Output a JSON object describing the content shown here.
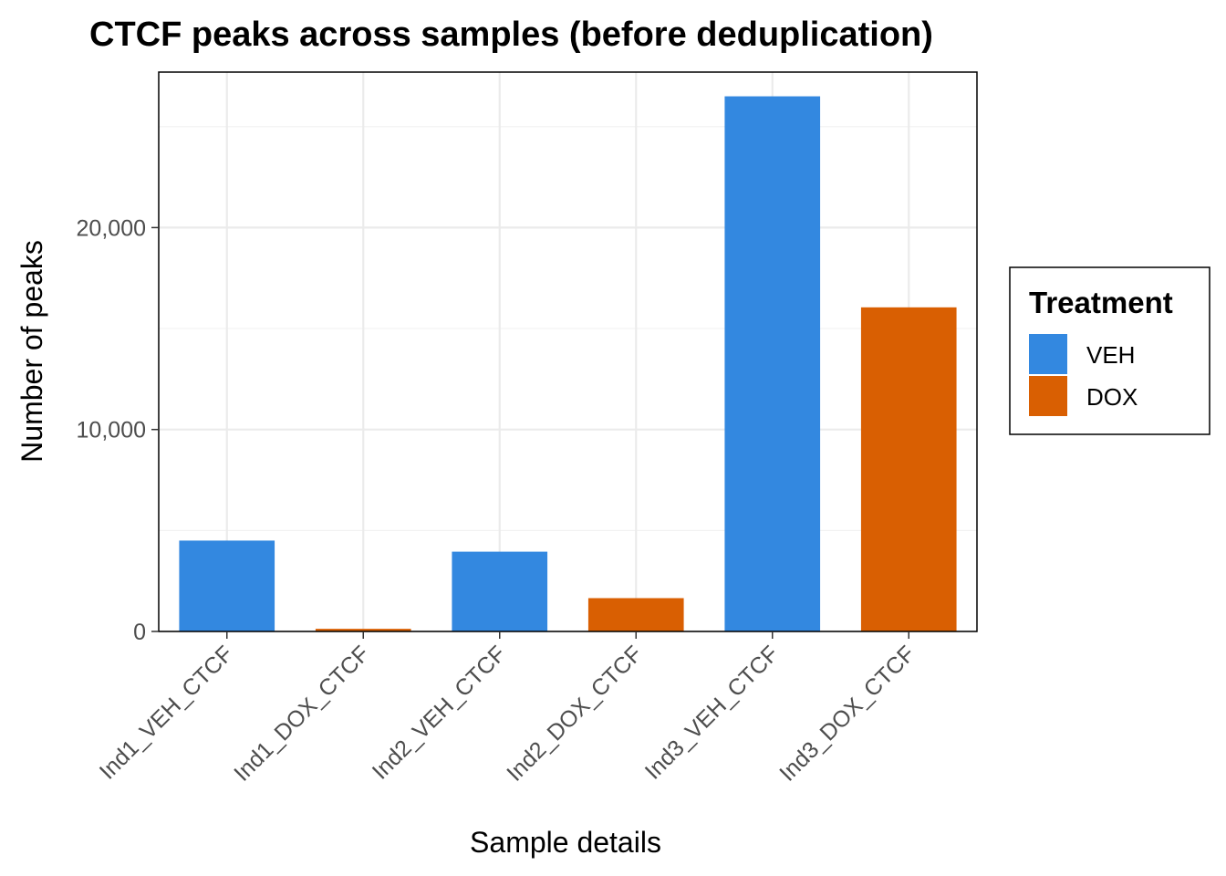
{
  "chart_data": {
    "type": "bar",
    "title": "CTCF peaks across samples (before deduplication)",
    "xlabel": "Sample details",
    "ylabel": "Number of peaks",
    "categories": [
      "Ind1_VEH_CTCF",
      "Ind1_DOX_CTCF",
      "Ind2_VEH_CTCF",
      "Ind2_DOX_CTCF",
      "Ind3_VEH_CTCF",
      "Ind3_DOX_CTCF"
    ],
    "values": [
      4500,
      130,
      3950,
      1650,
      26500,
      16050
    ],
    "treatment": [
      "VEH",
      "DOX",
      "VEH",
      "DOX",
      "VEH",
      "DOX"
    ],
    "ylim": [
      0,
      27700
    ],
    "yticks": [
      0,
      10000,
      20000
    ],
    "ytick_labels": [
      "0",
      "10,000",
      "20,000"
    ],
    "grid": true,
    "legend": {
      "title": "Treatment",
      "placement": "right",
      "entries": [
        {
          "label": "VEH",
          "color": "#3388e0"
        },
        {
          "label": "DOX",
          "color": "#d95f02"
        }
      ]
    }
  }
}
